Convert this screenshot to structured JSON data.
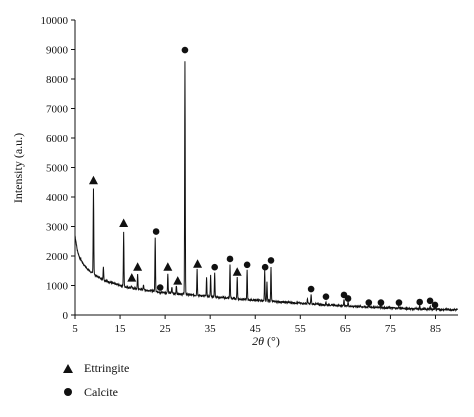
{
  "chart_data": {
    "type": "line",
    "title": "",
    "xlabel_main": "2θ",
    "xlabel_unit": " (°)",
    "ylabel": "Intensity (a.u.)",
    "xlim": [
      5,
      90
    ],
    "ylim": [
      0,
      10000
    ],
    "x_ticks": [
      "5",
      "15",
      "25",
      "35",
      "45",
      "55",
      "65",
      "75",
      "85"
    ],
    "y_ticks": [
      "0",
      "1000",
      "2000",
      "3000",
      "4000",
      "5000",
      "6000",
      "7000",
      "8000",
      "9000",
      "10000"
    ],
    "grid": false,
    "legend_position": "bottom-left",
    "baseline": [
      [
        5,
        2700
      ],
      [
        5.5,
        2200
      ],
      [
        6,
        1950
      ],
      [
        7,
        1700
      ],
      [
        8,
        1520
      ],
      [
        9,
        1400
      ],
      [
        10,
        1300
      ],
      [
        12,
        1150
      ],
      [
        14,
        1050
      ],
      [
        16,
        960
      ],
      [
        18,
        900
      ],
      [
        20,
        860
      ],
      [
        22,
        820
      ],
      [
        25,
        760
      ],
      [
        28,
        720
      ],
      [
        31,
        680
      ],
      [
        34,
        640
      ],
      [
        37,
        600
      ],
      [
        40,
        560
      ],
      [
        43,
        520
      ],
      [
        46,
        490
      ],
      [
        49,
        460
      ],
      [
        52,
        430
      ],
      [
        55,
        400
      ],
      [
        60,
        350
      ],
      [
        65,
        310
      ],
      [
        70,
        270
      ],
      [
        75,
        240
      ],
      [
        80,
        210
      ],
      [
        85,
        190
      ],
      [
        90,
        180
      ]
    ],
    "peaks": [
      {
        "x": 9.1,
        "y": 4300
      },
      {
        "x": 11.3,
        "y": 1650
      },
      {
        "x": 15.8,
        "y": 2800
      },
      {
        "x": 17.5,
        "y": 1000
      },
      {
        "x": 18.9,
        "y": 1400
      },
      {
        "x": 20.2,
        "y": 1050
      },
      {
        "x": 22.8,
        "y": 2650
      },
      {
        "x": 23.9,
        "y": 700
      },
      {
        "x": 25.6,
        "y": 1400
      },
      {
        "x": 26.5,
        "y": 950
      },
      {
        "x": 27.5,
        "y": 1000
      },
      {
        "x": 29.4,
        "y": 8600
      },
      {
        "x": 32.1,
        "y": 1550
      },
      {
        "x": 34.2,
        "y": 1250
      },
      {
        "x": 35.1,
        "y": 1350
      },
      {
        "x": 36.0,
        "y": 1450
      },
      {
        "x": 39.4,
        "y": 1700
      },
      {
        "x": 41.0,
        "y": 1300
      },
      {
        "x": 43.2,
        "y": 1550
      },
      {
        "x": 47.1,
        "y": 1550
      },
      {
        "x": 47.6,
        "y": 1100
      },
      {
        "x": 48.5,
        "y": 1650
      },
      {
        "x": 56.6,
        "y": 550
      },
      {
        "x": 57.4,
        "y": 700
      },
      {
        "x": 60.7,
        "y": 450
      },
      {
        "x": 64.7,
        "y": 550
      },
      {
        "x": 65.6,
        "y": 450
      },
      {
        "x": 70.2,
        "y": 350
      },
      {
        "x": 72.9,
        "y": 350
      },
      {
        "x": 76.9,
        "y": 300
      },
      {
        "x": 81.5,
        "y": 300
      },
      {
        "x": 83.8,
        "y": 300
      },
      {
        "x": 84.9,
        "y": 250
      }
    ],
    "markers": [
      {
        "phase": "ettringite",
        "x": 9.1,
        "y": 4550
      },
      {
        "phase": "ettringite",
        "x": 15.8,
        "y": 3100
      },
      {
        "phase": "ettringite",
        "x": 17.6,
        "y": 1250
      },
      {
        "phase": "ettringite",
        "x": 18.9,
        "y": 1620
      },
      {
        "phase": "ettringite",
        "x": 25.6,
        "y": 1620
      },
      {
        "phase": "ettringite",
        "x": 27.8,
        "y": 1150
      },
      {
        "phase": "ettringite",
        "x": 32.2,
        "y": 1720
      },
      {
        "phase": "ettringite",
        "x": 41.0,
        "y": 1450
      },
      {
        "phase": "calcite",
        "x": 23.0,
        "y": 2830
      },
      {
        "phase": "calcite",
        "x": 23.9,
        "y": 930
      },
      {
        "phase": "calcite",
        "x": 29.4,
        "y": 8980
      },
      {
        "phase": "calcite",
        "x": 36.0,
        "y": 1620
      },
      {
        "phase": "calcite",
        "x": 39.4,
        "y": 1900
      },
      {
        "phase": "calcite",
        "x": 43.2,
        "y": 1700
      },
      {
        "phase": "calcite",
        "x": 47.2,
        "y": 1620
      },
      {
        "phase": "calcite",
        "x": 48.5,
        "y": 1850
      },
      {
        "phase": "calcite",
        "x": 57.4,
        "y": 880
      },
      {
        "phase": "calcite",
        "x": 60.7,
        "y": 620
      },
      {
        "phase": "calcite",
        "x": 64.7,
        "y": 680
      },
      {
        "phase": "calcite",
        "x": 65.6,
        "y": 560
      },
      {
        "phase": "calcite",
        "x": 70.2,
        "y": 420
      },
      {
        "phase": "calcite",
        "x": 72.9,
        "y": 420
      },
      {
        "phase": "calcite",
        "x": 76.9,
        "y": 420
      },
      {
        "phase": "calcite",
        "x": 81.5,
        "y": 440
      },
      {
        "phase": "calcite",
        "x": 83.8,
        "y": 480
      },
      {
        "phase": "calcite",
        "x": 84.9,
        "y": 340
      }
    ],
    "legend": [
      {
        "marker": "triangle-icon",
        "label": "Ettringite"
      },
      {
        "marker": "circle-icon",
        "label": "Calcite"
      }
    ],
    "line_color": "#111111"
  }
}
